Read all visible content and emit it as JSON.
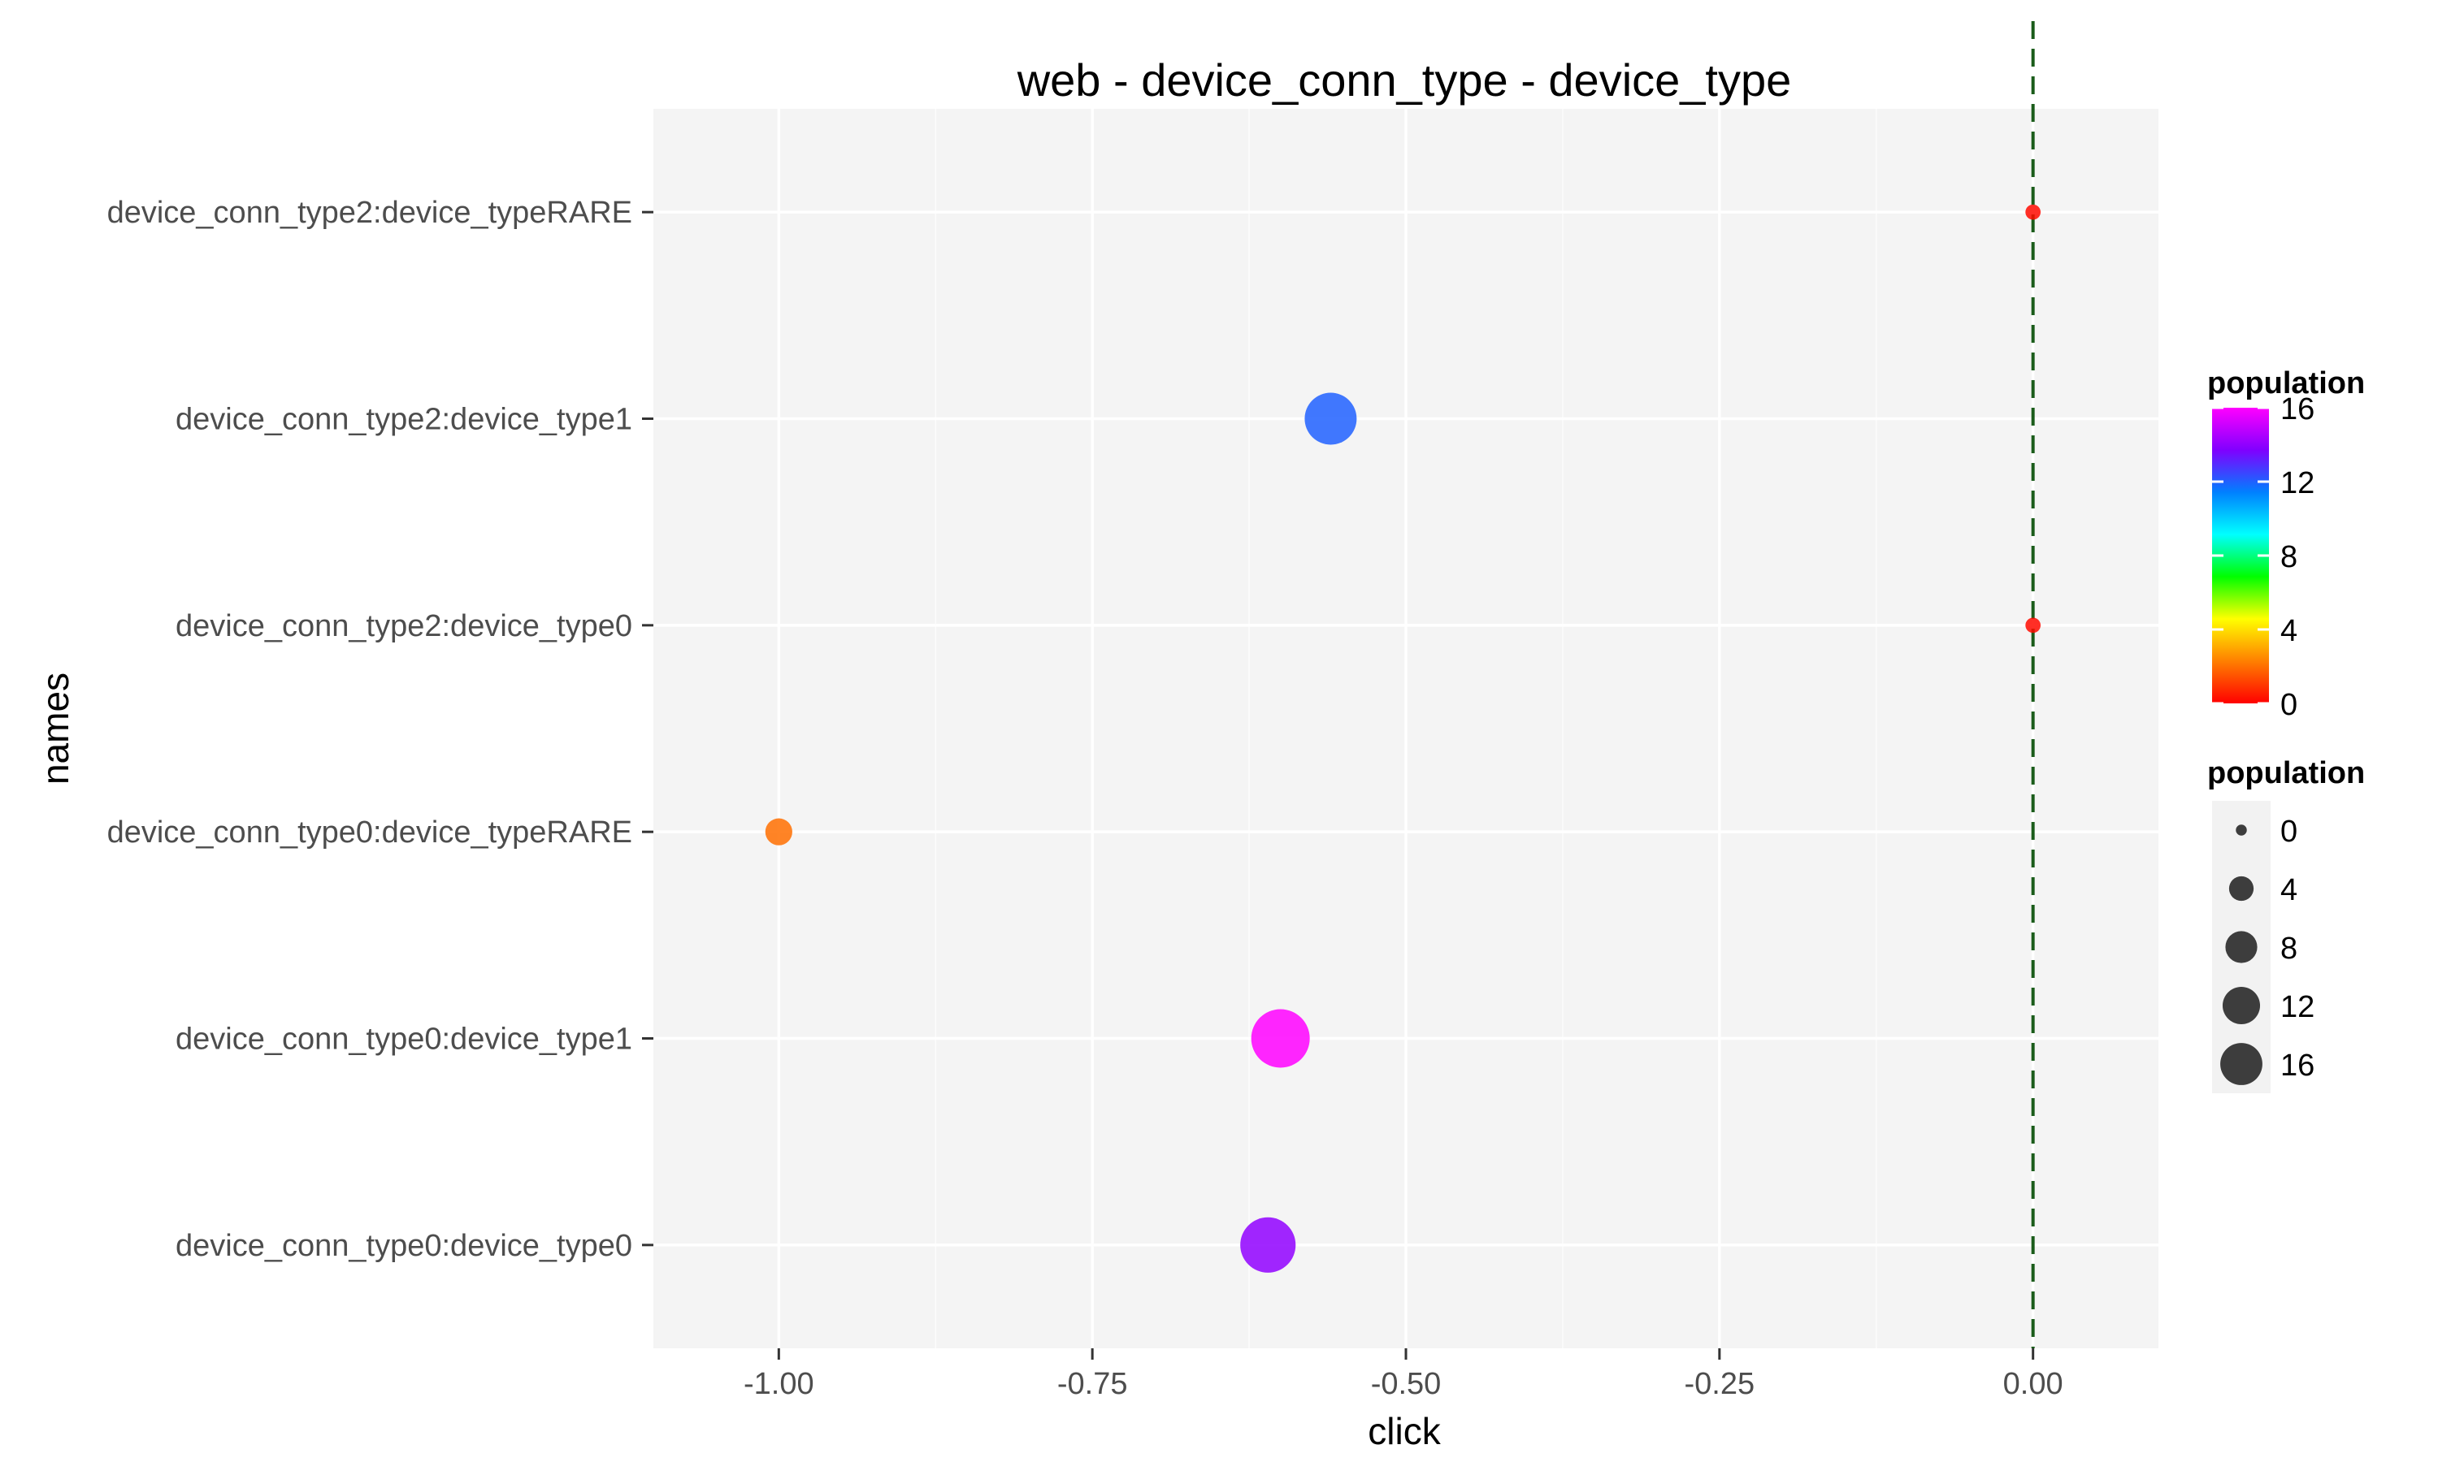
{
  "chart_data": {
    "type": "scatter",
    "title": "web - device_conn_type - device_type",
    "xlabel": "click",
    "ylabel": "names",
    "xlim": [
      -1.1,
      0.1
    ],
    "x_ticks": [
      -1.0,
      -0.75,
      -0.5,
      -0.25,
      0.0
    ],
    "x_tick_labels": [
      "-1.00",
      "-0.75",
      "-0.50",
      "-0.25",
      "0.00"
    ],
    "categories": [
      "device_conn_type0:device_type0",
      "device_conn_type0:device_type1",
      "device_conn_type0:device_typeRARE",
      "device_conn_type2:device_type0",
      "device_conn_type2:device_type1",
      "device_conn_type2:device_typeRARE"
    ],
    "points": [
      {
        "name": "device_conn_type2:device_typeRARE",
        "x": 0.0,
        "population": 0.2
      },
      {
        "name": "device_conn_type2:device_type1",
        "x": -0.56,
        "population": 12
      },
      {
        "name": "device_conn_type2:device_type0",
        "x": 0.0,
        "population": 0.2
      },
      {
        "name": "device_conn_type0:device_typeRARE",
        "x": -1.0,
        "population": 2
      },
      {
        "name": "device_conn_type0:device_type1",
        "x": -0.6,
        "population": 16
      },
      {
        "name": "device_conn_type0:device_type0",
        "x": -0.61,
        "population": 14
      }
    ],
    "reference_line": {
      "x": 0.0,
      "style": "dashed",
      "color": "#1a5c1a"
    },
    "grid": true,
    "legend": {
      "placement": "right",
      "color": {
        "title": "population",
        "range": [
          0,
          16
        ],
        "tick_values": [
          16,
          12,
          8,
          4,
          0
        ],
        "tick_labels": [
          "16",
          "12",
          "8",
          "4",
          "0"
        ],
        "gradient_colors": [
          "#ff0000",
          "#ff7f00",
          "#ffff00",
          "#00ff00",
          "#00ffff",
          "#0080ff",
          "#8000ff",
          "#ff00ff"
        ]
      },
      "size": {
        "title": "population",
        "values": [
          0,
          4,
          8,
          12,
          16
        ],
        "labels": [
          "0",
          "4",
          "8",
          "12",
          "16"
        ]
      }
    }
  }
}
